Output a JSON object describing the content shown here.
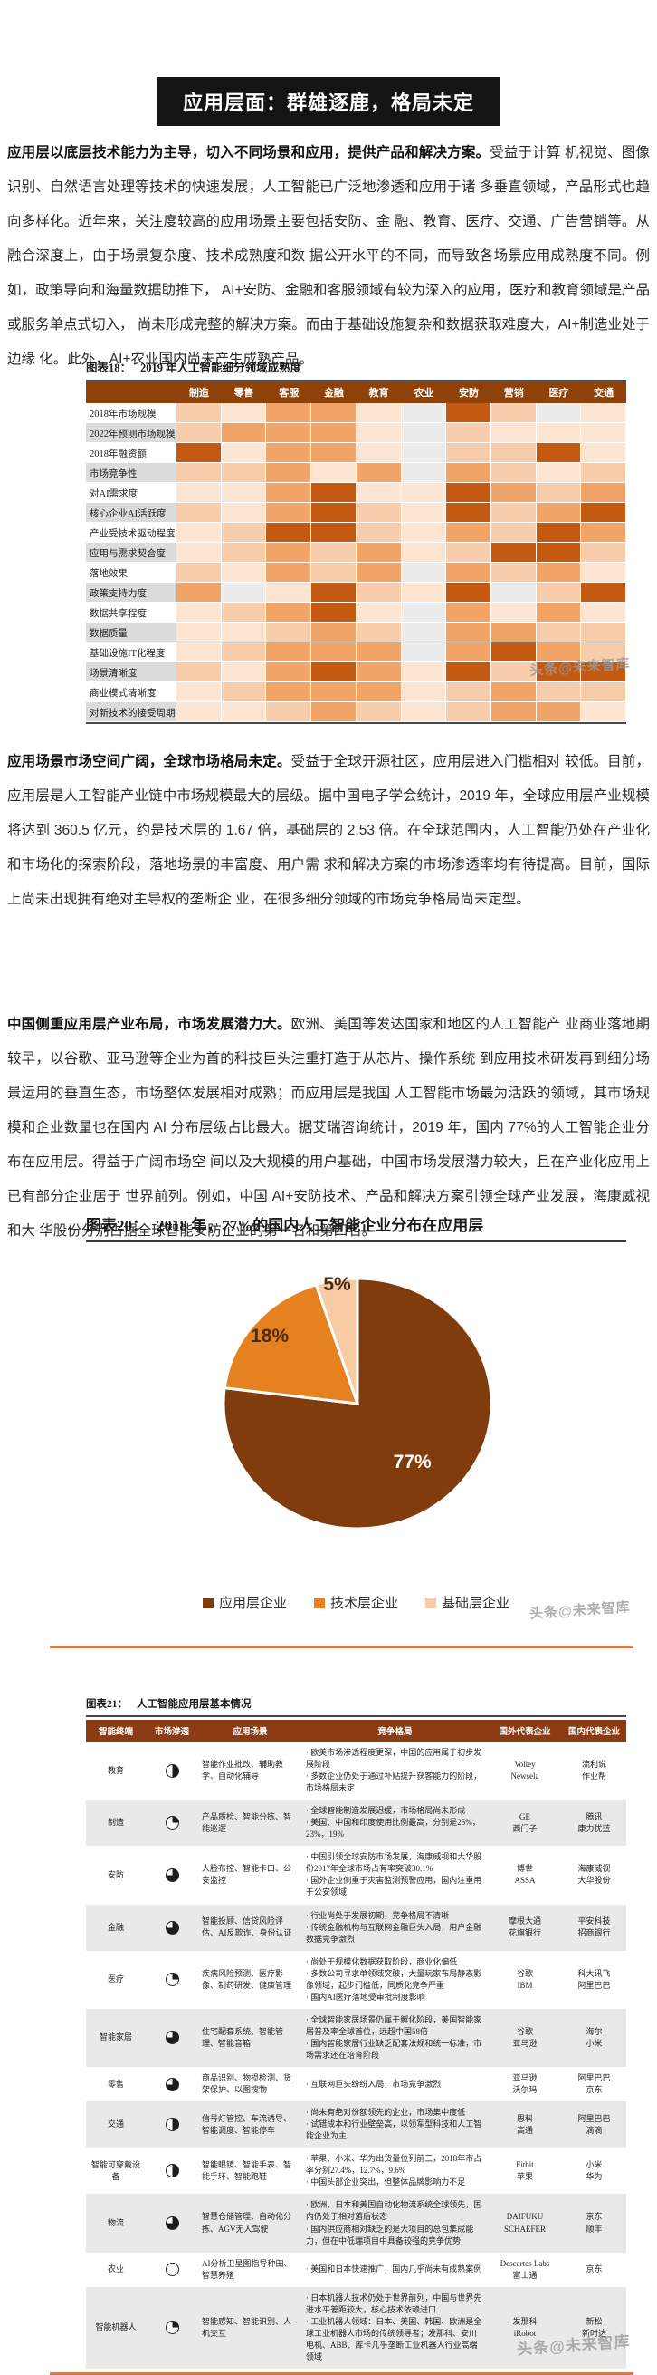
{
  "banner": {
    "title": "应用层面：群雄逐鹿，格局未定"
  },
  "paragraphs": {
    "p1_lead": "应用层以底层技术能力为主导，切入不同场景和应用，提供产品和解决方案。",
    "p1_rest": "受益于计算 机视觉、图像识别、自然语言处理等技术的快速发展，人工智能已广泛地渗透和应用于诸 多垂直领域，产品形式也趋向多样化。近年来，关注度较高的应用场景主要包括安防、金 融、教育、医疗、交通、广告营销等。从融合深度上，由于场景复杂度、技术成熟度和数 据公开水平的不同，而导致各场景应用成熟度不同。例如，政策导向和海量数据助推下， AI+安防、金融和客服领域有较为深入的应用，医疗和教育领域是产品或服务单点式切入， 尚未形成完整的解决方案。而由于基础设施复杂和数据获取难度大，AI+制造业处于边缘 化。此外，AI+农业国内尚未产生成熟产品。",
    "p2_lead": "应用场景市场空间广阔，全球市场格局未定。",
    "p2_rest": "受益于全球开源社区，应用层进入门槛相对 较低。目前，应用层是人工智能产业链中市场规模最大的层级。据中国电子学会统计，2019 年，全球应用层产业规模将达到 360.5 亿元，约是技术层的 1.67 倍，基础层的 2.53 倍。在全球范围内，人工智能仍处在产业化和市场化的探索阶段，落地场景的丰富度、用户需 求和解决方案的市场渗透率均有待提高。目前，国际上尚未出现拥有绝对主导权的垄断企 业，在很多细分领域的市场竞争格局尚未定型。",
    "p3_lead": "中国侧重应用层产业布局，市场发展潜力大。",
    "p3_rest": "欧洲、美国等发达国家和地区的人工智能产 业商业落地期较早，以谷歌、亚马逊等企业为首的科技巨头注重打造于从芯片、操作系统 到应用技术研发再到细分场景运用的垂直生态，市场整体发展相对成熟；而应用层是我国 人工智能市场最为活跃的领域，其市场规模和企业数量也在国内 AI 分布层级占比最大。据艾瑞咨询统计，2019 年，国内 77%的人工智能企业分布在应用层。得益于广阔市场空 间以及大规模的用户基础，中国市场发展潜力较大，且在产业化应用上已有部分企业居于 世界前列。例如，中国 AI+安防技术、产品和解决方案引领全球产业发展，海康威视和大 华股份分别占据全球智能安防企业的第一名和第四名。"
  },
  "watermark": "头条@未来智库",
  "chart_data": [
    {
      "type": "heatmap",
      "figure_label": "图表18：",
      "title": "2019 年人工智能细分领域成熟度",
      "x_categories": [
        "制造",
        "零售",
        "客服",
        "金融",
        "教育",
        "农业",
        "安防",
        "营销",
        "医疗",
        "交通"
      ],
      "y_categories": [
        "2018年市场规模",
        "2022年预测市场规模",
        "2018年融资额",
        "市场竞争性",
        "对AI需求度",
        "核心企业AI活跃度",
        "产业受技术驱动程度",
        "应用与需求契合度",
        "落地效果",
        "政策支持力度",
        "数据共享程度",
        "数据质量",
        "基础设施IT化程度",
        "场景清晰度",
        "商业模式清晰度",
        "对新技术的接受周期"
      ],
      "value_scale": "0=最低(灰) 到 4=最高(深橙)",
      "values": [
        [
          2,
          1,
          3,
          3,
          1,
          0,
          4,
          2,
          0,
          1
        ],
        [
          2,
          3,
          3,
          3,
          1,
          0,
          2,
          1,
          1,
          1
        ],
        [
          4,
          1,
          3,
          3,
          1,
          0,
          2,
          2,
          4,
          1
        ],
        [
          2,
          2,
          3,
          1,
          3,
          0,
          3,
          2,
          1,
          2
        ],
        [
          1,
          1,
          3,
          4,
          1,
          1,
          4,
          3,
          2,
          3
        ],
        [
          2,
          1,
          3,
          4,
          2,
          1,
          4,
          2,
          3,
          4
        ],
        [
          1,
          2,
          4,
          4,
          2,
          1,
          3,
          2,
          4,
          3
        ],
        [
          1,
          2,
          3,
          2,
          3,
          1,
          2,
          4,
          4,
          2
        ],
        [
          2,
          1,
          3,
          2,
          3,
          0,
          3,
          2,
          3,
          1
        ],
        [
          3,
          0,
          1,
          4,
          2,
          1,
          4,
          0,
          2,
          4
        ],
        [
          1,
          2,
          3,
          4,
          1,
          0,
          3,
          1,
          3,
          1
        ],
        [
          1,
          1,
          2,
          3,
          2,
          0,
          3,
          3,
          2,
          2
        ],
        [
          1,
          2,
          3,
          3,
          3,
          0,
          3,
          4,
          3,
          2
        ],
        [
          2,
          1,
          3,
          4,
          3,
          1,
          4,
          2,
          4,
          4
        ],
        [
          1,
          2,
          3,
          3,
          3,
          1,
          2,
          3,
          2,
          2
        ],
        [
          1,
          1,
          2,
          3,
          2,
          1,
          2,
          3,
          3,
          1
        ]
      ],
      "palette": [
        "#ECECEC",
        "#FCE5D2",
        "#F8CDAC",
        "#F0A467",
        "#C45A11"
      ],
      "header_color": "#8E4109"
    },
    {
      "type": "pie",
      "figure_label": "图表20：",
      "title": "2018 年，77%的国内人工智能企业分布在应用层",
      "labels": [
        "应用层企业",
        "技术层企业",
        "基础层企业"
      ],
      "values": [
        77,
        18,
        5
      ],
      "data_labels": [
        "77%",
        "18%",
        "5%"
      ],
      "colors": [
        "#803C0C",
        "#E5821F",
        "#F7CBA4"
      ],
      "label_colors": [
        "#FFFFFF",
        "#4a2c10",
        "#4a2c10"
      ],
      "label_radius": [
        0.62,
        0.85,
        0.97
      ],
      "start_angle_deg": 0,
      "direction": "clockwise",
      "legend_position": "bottom"
    }
  ],
  "app_table": {
    "figure_label": "图表21：",
    "title": "人工智能应用层基本情况",
    "columns": [
      "智能终端",
      "市场渗透",
      "应用场景",
      "竞争格局",
      "国外代表企业",
      "国内代表企业"
    ],
    "rows": [
      {
        "terminal": "教育",
        "penetration": 0.5,
        "scenarios": "智能作业批改、辅助教学、自动化辅导",
        "competition": [
          "欧美市场渗透程度更深，中国的应用属于初步发展阶段",
          "多数企业仍处于通过补贴提升获客能力的阶段，市场格局未定"
        ],
        "foreign": [
          "Volley",
          "Newsela"
        ],
        "domestic": [
          "流利说",
          "作业帮"
        ]
      },
      {
        "terminal": "制造",
        "penetration": 0.25,
        "scenarios": "产品质检、智能分拣、智能巡逻",
        "competition": [
          "全球智能制造发展迟缓，市场格局尚未形成",
          "美国、中国和印度使用比例最高，分别是25%，23%，19%"
        ],
        "foreign": [
          "GE",
          "西门子"
        ],
        "domestic": [
          "腾讯",
          "康力优蓝"
        ]
      },
      {
        "terminal": "安防",
        "penetration": 0.75,
        "scenarios": "人脸布控、智能卡口、公安监控",
        "competition": [
          "中国引领全球安防市场发展，海康威视和大华股份2017年全球市场占有率突破30.1%",
          "国外企业侧重于灾害监测预警应用，国内注重用于公安领域"
        ],
        "foreign": [
          "博世",
          "ASSA"
        ],
        "domestic": [
          "海康威视",
          "大华股份"
        ]
      },
      {
        "terminal": "金融",
        "penetration": 0.75,
        "scenarios": "智能投顾、信贷风险评估、AI反欺诈、身份认证",
        "competition": [
          "行业尚处于发展初期，竞争格局不清晰",
          "传统金融机构与互联网金融巨头入局，用户金融数据竞争激烈"
        ],
        "foreign": [
          "摩根大通",
          "花旗银行"
        ],
        "domestic": [
          "平安科技",
          "招商银行"
        ]
      },
      {
        "terminal": "医疗",
        "penetration": 0.25,
        "scenarios": "疾病风险预测、医疗影像、制药研发、健康管理",
        "competition": [
          "尚处于规模化数据获取阶段，商业化偏低",
          "多数公司寻求单领域突破，大量玩家布局静态影像领域，起步门槛低，同质化竞争严重",
          "国内AI医疗落地受审批制度影响"
        ],
        "foreign": [
          "谷歌",
          "IBM"
        ],
        "domestic": [
          "科大讯飞",
          "阿里巴巴"
        ]
      },
      {
        "terminal": "智能家居",
        "penetration": 0.75,
        "scenarios": "住宅配套系统、智能管理、智能音箱",
        "competition": [
          "全球智能家居场景仍属于孵化阶段，美国智能家居普及率全球首位，远超中国58倍",
          "国内智能家居行业缺乏配套法规和统一标准，市场需求还在培育阶段"
        ],
        "foreign": [
          "谷歌",
          "亚马逊"
        ],
        "domestic": [
          "海尔",
          "小米"
        ]
      },
      {
        "terminal": "零售",
        "penetration": 0.75,
        "scenarios": "商品识别、物损检测、货架保护、以图搜物",
        "competition": [
          "互联网巨头纷纷入局，市场竞争激烈"
        ],
        "foreign": [
          "亚马逊",
          "沃尔玛"
        ],
        "domestic": [
          "阿里巴巴",
          "京东"
        ]
      },
      {
        "terminal": "交通",
        "penetration": 0.5,
        "scenarios": "信号灯管控、车流诱导、智能调度、智能停车",
        "competition": [
          "尚未有绝对份额领先的企业，市场集中度低",
          "试错成本和行业壁垒高，以领军型科技和人工智能企业为主"
        ],
        "foreign": [
          "思科",
          "高通"
        ],
        "domestic": [
          "阿里巴巴",
          "滴滴"
        ]
      },
      {
        "terminal": "智能可穿戴设备",
        "penetration": 0.5,
        "scenarios": "智能眼镜、智能手表、智能手环、智能跑鞋",
        "competition": [
          "苹果、小米、华为出货量位列前三，2018年市占率分别27.4%，12.7%，9.6%",
          "中国头部企业突出，但整体品牌影响力不足"
        ],
        "foreign": [
          "Fitbit",
          "苹果"
        ],
        "domestic": [
          "小米",
          "华为"
        ]
      },
      {
        "terminal": "物流",
        "penetration": 0.75,
        "scenarios": "智慧仓储管理、自动化分拣、AGV无人驾驶",
        "competition": [
          "欧洲、日本和美国自动化物流系统全球领先，国内仍处于相对落后状态",
          "国内供应商相对缺乏的是大项目的总包集成能力，但在中低端项目中具备较强的竞争优势"
        ],
        "foreign": [
          "DAIFUKU",
          "SCHAEFER"
        ],
        "domestic": [
          "京东",
          "顺丰"
        ]
      },
      {
        "terminal": "农业",
        "penetration": 0,
        "scenarios": "AI分析卫星图指导种田、智慧养殖",
        "competition": [
          "美国和日本快速推广，国内几乎尚未有成熟案例"
        ],
        "foreign": [
          "Descartes Labs",
          "富士通"
        ],
        "domestic": [
          "京东"
        ]
      },
      {
        "terminal": "智能机器人",
        "penetration": 0.25,
        "scenarios": "智能感知、智能识别、人机交互",
        "competition": [
          "日本机器人技术仍处于世界前列，中国与世界先进水平差距较大，核心技术依赖进口",
          "工业机器人领域：日本、美国、韩国、欧洲是全球工业机器人市场的传统领导者；发那科、安川电机、ABB、库卡几乎垄断工业机器人行业高端领域"
        ],
        "foreign": [
          "发那科",
          "iRobot"
        ],
        "domestic": [
          "新松",
          "新时达"
        ]
      }
    ]
  }
}
